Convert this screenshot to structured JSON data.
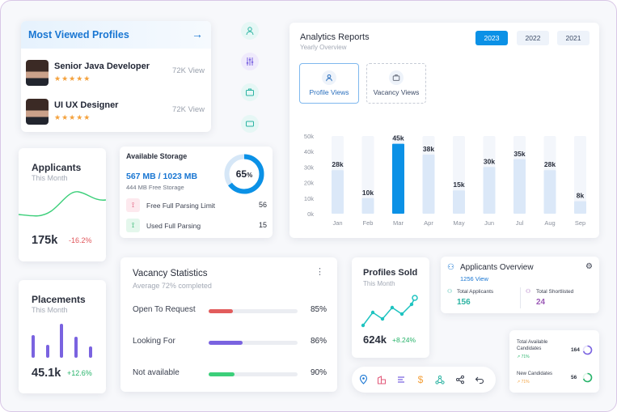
{
  "most_viewed": {
    "title": "Most Viewed Profiles",
    "profiles": [
      {
        "name": "Senior Java Developer",
        "stars": "★★★★★",
        "views": "72K View"
      },
      {
        "name": "UI UX Designer",
        "stars": "★★★★★",
        "views": "72K View"
      }
    ]
  },
  "side_icons": [
    "user-icon",
    "sliders-icon",
    "briefcase-icon",
    "card-icon"
  ],
  "analytics": {
    "title": "Analytics Reports",
    "subtitle": "Yearly Overview",
    "years": [
      "2023",
      "2022",
      "2021"
    ],
    "active_year": "2023",
    "tabs": [
      {
        "label": "Profile Views",
        "icon": "user-icon"
      },
      {
        "label": "Vacancy Views",
        "icon": "briefcase-icon"
      }
    ]
  },
  "chart_data": {
    "type": "bar",
    "categories": [
      "Jan",
      "Feb",
      "Mar",
      "Apr",
      "May",
      "Jun",
      "Jul",
      "Aug",
      "Sep"
    ],
    "values": [
      28,
      10,
      45,
      38,
      15,
      30,
      35,
      28,
      8
    ],
    "data_labels": [
      "28k",
      "10k",
      "45k",
      "38k",
      "15k",
      "30k",
      "35k",
      "28k",
      "8k"
    ],
    "yticks": [
      "50k",
      "40k",
      "30k",
      "20k",
      "10k",
      "0k"
    ],
    "ylim": [
      0,
      50
    ],
    "highlight_index": 2,
    "colors": {
      "bar": "#dbe8f8",
      "highlight": "#0b91e6",
      "track": "#f3f6fb"
    }
  },
  "applicants": {
    "title": "Applicants",
    "subtitle": "This Month",
    "value": "175k",
    "change": "-16.2%"
  },
  "storage": {
    "title": "Available Storage",
    "amount": "567 MB / 1023 MB",
    "free": "444 MB Free Storage",
    "percent": 65,
    "percent_number": "65",
    "percent_sign": "%",
    "rows": [
      {
        "label": "Free Full Parsing Limit",
        "value": "56",
        "icon": "pulse-icon"
      },
      {
        "label": "Used Full Parsing",
        "value": "15",
        "icon": "pulse-icon"
      }
    ]
  },
  "placements": {
    "title": "Placements",
    "subtitle": "This Month",
    "value": "45.1k",
    "change": "+12.6%"
  },
  "vacancy": {
    "title": "Vacancy Statistics",
    "subtitle": "Average 72% completed",
    "rows": [
      {
        "label": "Open To Request",
        "percent": "85%",
        "fill": 0.27,
        "color": "#e25c5c"
      },
      {
        "label": "Looking For",
        "percent": "86%",
        "fill": 0.38,
        "color": "#7a63e0"
      },
      {
        "label": "Not available",
        "percent": "90%",
        "fill": 0.29,
        "color": "#3ccf7a"
      }
    ]
  },
  "profiles_sold": {
    "title": "Profiles Sold",
    "subtitle": "This Month",
    "value": "624k",
    "change": "+8.24%"
  },
  "applicants_overview": {
    "title": "Applicants Overview",
    "views": "1256 View",
    "total_label": "Total Applicants",
    "total_value": "156",
    "short_label": "Total Shortlisted",
    "short_value": "24"
  },
  "availability": {
    "rows": [
      {
        "label": "Total Available Candidates",
        "trend": "71%",
        "value": "164"
      },
      {
        "label": "New Candidates",
        "trend": "71%",
        "value": "56"
      }
    ]
  },
  "toolbar": {
    "icons": [
      "location-icon",
      "building-icon",
      "lines-icon",
      "dollar-icon",
      "network-icon",
      "share-icon",
      "undo-icon"
    ]
  }
}
